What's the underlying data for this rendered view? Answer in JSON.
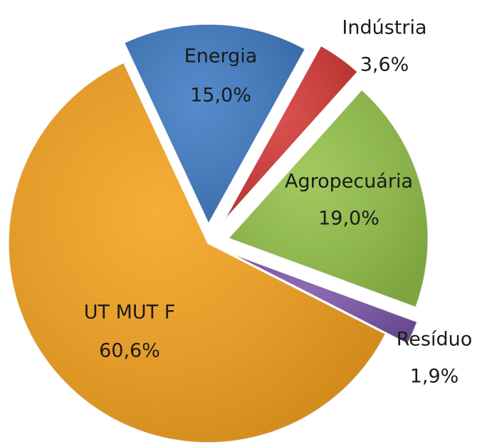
{
  "chart_data": {
    "type": "pie",
    "categories": [
      "Energia",
      "Indústria",
      "Agropecuária",
      "Resíduo",
      "UT MUT F"
    ],
    "values": [
      15.0,
      3.6,
      19.0,
      1.9,
      60.6
    ],
    "value_labels": [
      "15,0%",
      "3,6%",
      "19,0%",
      "1,9%",
      "60,6%"
    ],
    "colors": [
      "#3f7bc4",
      "#d43a36",
      "#94c24a",
      "#7c57a8",
      "#f5a21e"
    ]
  }
}
